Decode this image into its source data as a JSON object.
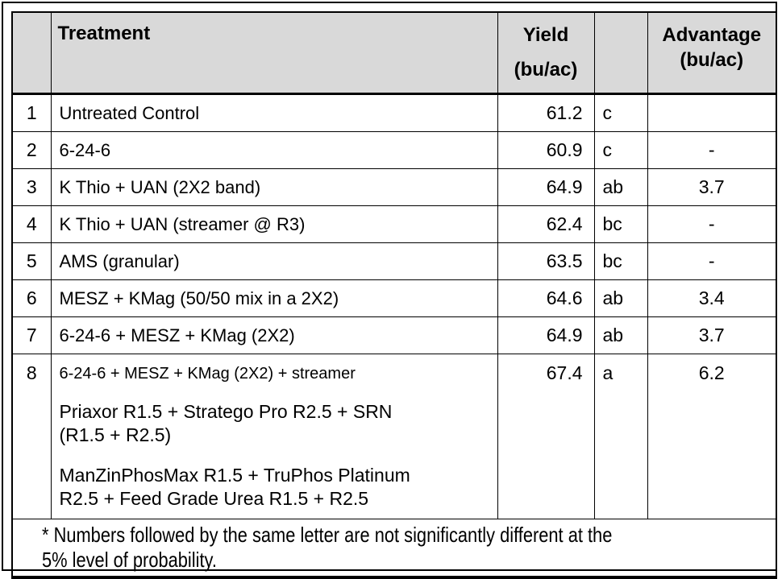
{
  "table": {
    "headers": {
      "num": "",
      "treatment": "Treatment",
      "yield_line1": "Yield",
      "yield_line2": "(bu/ac)",
      "letter": "",
      "advantage_line1": "Advantage",
      "advantage_line2": "(bu/ac)"
    },
    "rows": [
      {
        "num": "1",
        "treatment": "Untreated Control",
        "yield": "61.2",
        "letter": "c",
        "advantage": ""
      },
      {
        "num": "2",
        "treatment": "6-24-6",
        "yield": "60.9",
        "letter": "c",
        "advantage": "-"
      },
      {
        "num": "3",
        "treatment": "K Thio + UAN (2X2 band)",
        "yield": "64.9",
        "letter": "ab",
        "advantage": "3.7"
      },
      {
        "num": "4",
        "treatment": "K Thio + UAN (streamer @ R3)",
        "yield": "62.4",
        "letter": "bc",
        "advantage": "-"
      },
      {
        "num": "5",
        "treatment": "AMS (granular)",
        "yield": "63.5",
        "letter": "bc",
        "advantage": "-"
      },
      {
        "num": "6",
        "treatment": "MESZ + KMag (50/50 mix in a 2X2)",
        "yield": "64.6",
        "letter": "ab",
        "advantage": "3.4"
      },
      {
        "num": "7",
        "treatment": "6-24-6 + MESZ + KMag (2X2)",
        "yield": "64.9",
        "letter": "ab",
        "advantage": "3.7"
      },
      {
        "num": "8",
        "treatment": "6-24-6 + MESZ + KMag (2X2) + streamer",
        "yield": "67.4",
        "letter": "a",
        "advantage": "6.2"
      }
    ],
    "row8_extra": [
      "Priaxor R1.5 + Stratego Pro R2.5 + SRN (R1.5 + R2.5)",
      "ManZinPhosMax R1.5 + TruPhos Platinum R2.5 + Feed Grade Urea R1.5 + R2.5"
    ],
    "footnote_line1": "* Numbers followed by the same letter are not significantly different at the",
    "footnote_line2": "5% level of probability."
  },
  "colors": {
    "header_bg": "#d9d9d9",
    "border": "#000000",
    "text": "#000000",
    "page_bg": "#ffffff"
  }
}
